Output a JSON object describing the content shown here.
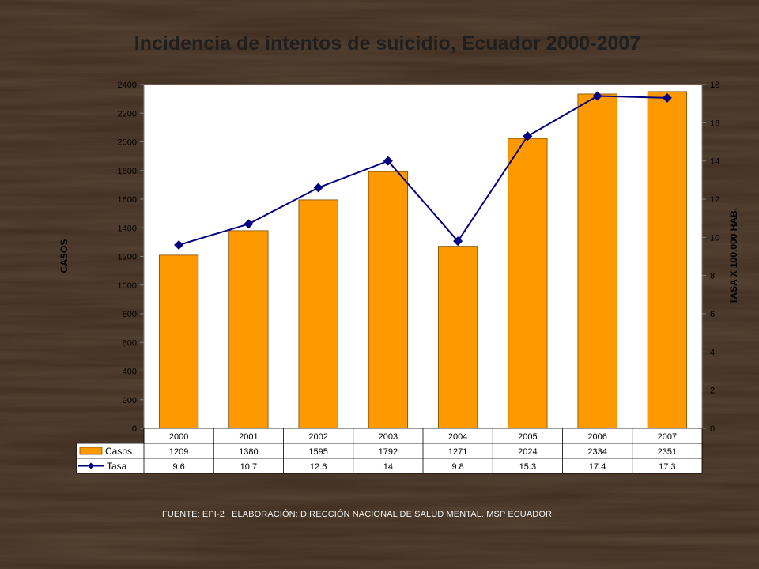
{
  "title": "Incidencia de intentos de suicidio, Ecuador 2000-2007",
  "source": {
    "fuente": "FUENTE: EPI-2",
    "elaboracion": "ELABORACIÓN: DIRECCIÓN NACIONAL DE SALUD MENTAL. MSP ECUADOR."
  },
  "colors": {
    "bar": "#ff9900",
    "bar_border": "#7a4a00",
    "line": "#000080",
    "plot_bg": "#ffffff",
    "background": "#3d2e22"
  },
  "chart_data": {
    "type": "bar",
    "title": "Incidencia de intentos de suicidio, Ecuador 2000-2007",
    "categories": [
      "2000",
      "2001",
      "2002",
      "2003",
      "2004",
      "2005",
      "2006",
      "2007"
    ],
    "ylabel": "CASOS",
    "y2label": "TASA X 100.000 HAB.",
    "ylim": [
      0,
      2400
    ],
    "y2lim": [
      0,
      18
    ],
    "yticks": [
      "0",
      "200",
      "400",
      "600",
      "800",
      "1000",
      "1200",
      "1400",
      "1600",
      "1800",
      "2000",
      "2200",
      "2400"
    ],
    "y2ticks": [
      "0",
      "2",
      "4",
      "6",
      "8",
      "10",
      "12",
      "14",
      "16",
      "18"
    ],
    "grid": false,
    "legend": "data-table",
    "series": [
      {
        "name": "Casos",
        "type": "bar",
        "axis": "left",
        "values": [
          1209,
          1380,
          1595,
          1792,
          1271,
          2024,
          2334,
          2351
        ],
        "labels": [
          "1209",
          "1380",
          "1595",
          "1792",
          "1271",
          "2024",
          "2334",
          "2351"
        ]
      },
      {
        "name": "Tasa",
        "type": "line",
        "axis": "right",
        "values": [
          9.6,
          10.7,
          12.6,
          14,
          9.8,
          15.3,
          17.4,
          17.3
        ],
        "labels": [
          "9.6",
          "10.7",
          "12.6",
          "14",
          "9.8",
          "15.3",
          "17.4",
          "17.3"
        ]
      }
    ]
  }
}
